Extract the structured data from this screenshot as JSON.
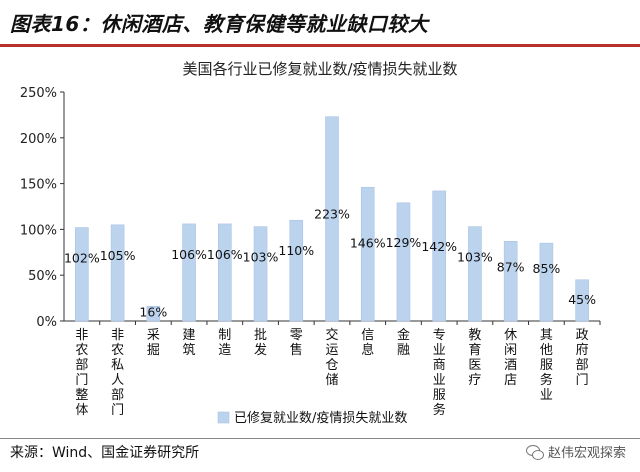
{
  "header": {
    "title": "图表16：休闲酒店、教育保健等就业缺口较大"
  },
  "footer": {
    "source": "来源：Wind、国金证券研究所",
    "watermark": "赵伟宏观探索",
    "watermark_icon": "wechat-icon"
  },
  "colors": {
    "bar": "#bcd3ee",
    "bar_stroke": "#a9c3e4",
    "header_rule": "#b6302c"
  },
  "chart_data": {
    "type": "bar",
    "title": "美国各行业已修复就业数/疫情损失就业数",
    "categories": [
      "非农部门整体",
      "非农私人部门",
      "采掘",
      "建筑",
      "制造",
      "批发",
      "零售",
      "交运仓储",
      "信息",
      "金融",
      "专业商业服务",
      "教育医疗",
      "休闲酒店",
      "其他服务业",
      "政府部门"
    ],
    "series": [
      {
        "name": "已修复就业数/疫情损失就业数",
        "values": [
          102,
          105,
          16,
          106,
          106,
          103,
          110,
          223,
          146,
          129,
          142,
          103,
          87,
          85,
          45
        ],
        "labels": [
          "102%",
          "105%",
          "16%",
          "106%",
          "106%",
          "103%",
          "110%",
          "223%",
          "146%",
          "129%",
          "142%",
          "103%",
          "87%",
          "85%",
          "45%"
        ]
      }
    ],
    "y_ticks": [
      0,
      50,
      100,
      150,
      200,
      250
    ],
    "y_tick_labels": [
      "0%",
      "50%",
      "100%",
      "150%",
      "200%",
      "250%"
    ],
    "ylim": [
      0,
      250
    ],
    "grid": false,
    "legend_position": "bottom-center"
  }
}
